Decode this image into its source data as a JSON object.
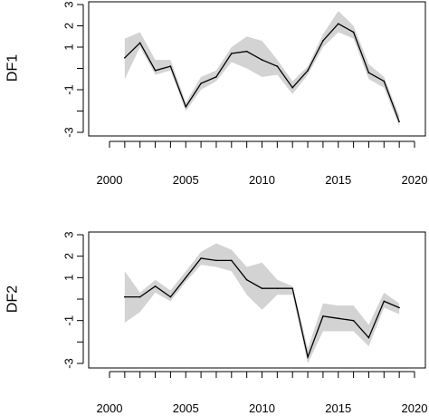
{
  "chart_data": [
    {
      "type": "line",
      "title": "",
      "xlabel": "",
      "ylabel": "DF1",
      "x": [
        2001,
        2002,
        2003,
        2004,
        2005,
        2006,
        2007,
        2008,
        2009,
        2010,
        2011,
        2012,
        2013,
        2014,
        2015,
        2016,
        2017,
        2018,
        2019
      ],
      "series": [
        {
          "values": [
            0.5,
            1.2,
            -0.1,
            0.1,
            -1.8,
            -0.7,
            -0.4,
            0.7,
            0.8,
            0.4,
            0.1,
            -0.9,
            -0.1,
            1.3,
            2.1,
            1.7,
            -0.2,
            -0.6,
            -2.5
          ],
          "lower": [
            -0.5,
            1.0,
            -0.3,
            -0.1,
            -2.0,
            -1.0,
            -0.6,
            0.3,
            0.0,
            -0.4,
            -0.3,
            -1.2,
            -0.3,
            1.0,
            1.7,
            1.4,
            -0.5,
            -0.9,
            -2.7
          ],
          "upper": [
            1.4,
            1.7,
            0.4,
            0.4,
            -1.6,
            -0.4,
            -0.1,
            1.0,
            1.5,
            1.3,
            0.4,
            -0.6,
            0.1,
            1.6,
            2.7,
            2.0,
            0.2,
            -0.4,
            -2.2
          ]
        }
      ],
      "xticks": [
        2000,
        2005,
        2010,
        2015,
        2020
      ],
      "yticks": [
        -3,
        -1,
        1,
        2,
        3
      ],
      "ytick_values": [
        -3,
        -2,
        -1,
        0,
        1,
        2,
        3
      ],
      "xlim": [
        2000,
        2020
      ],
      "ylim": [
        -3,
        3
      ],
      "grid": false,
      "line_color": "#000000",
      "band_color": "#d3d3d3"
    },
    {
      "type": "line",
      "title": "",
      "xlabel": "",
      "ylabel": "DF2",
      "x": [
        2001,
        2002,
        2003,
        2004,
        2005,
        2006,
        2007,
        2008,
        2009,
        2010,
        2011,
        2012,
        2013,
        2014,
        2015,
        2016,
        2017,
        2018,
        2019
      ],
      "series": [
        {
          "values": [
            0.1,
            0.1,
            0.6,
            0.1,
            1.0,
            1.9,
            1.8,
            1.8,
            0.9,
            0.5,
            0.5,
            0.5,
            -2.7,
            -0.8,
            -0.9,
            -1.0,
            -1.8,
            -0.1,
            -0.4
          ],
          "lower": [
            -1.1,
            -0.6,
            0.3,
            -0.1,
            0.8,
            1.6,
            1.5,
            1.3,
            0.2,
            -0.5,
            0.2,
            0.2,
            -3.0,
            -1.5,
            -1.5,
            -1.5,
            -2.2,
            -0.4,
            -0.7
          ],
          "upper": [
            1.3,
            0.3,
            0.9,
            0.4,
            1.3,
            2.2,
            2.6,
            2.3,
            1.5,
            1.7,
            0.9,
            0.6,
            -2.3,
            -0.2,
            -0.3,
            -0.3,
            -1.2,
            0.3,
            -0.2
          ]
        }
      ],
      "xticks": [
        2000,
        2005,
        2010,
        2015,
        2020
      ],
      "yticks": [
        -3,
        -1,
        1,
        2,
        3
      ],
      "ytick_values": [
        -3,
        -2,
        -1,
        0,
        1,
        2,
        3
      ],
      "xlim": [
        2000,
        2020
      ],
      "ylim": [
        -3,
        3
      ],
      "grid": false,
      "line_color": "#000000",
      "band_color": "#d3d3d3"
    }
  ]
}
